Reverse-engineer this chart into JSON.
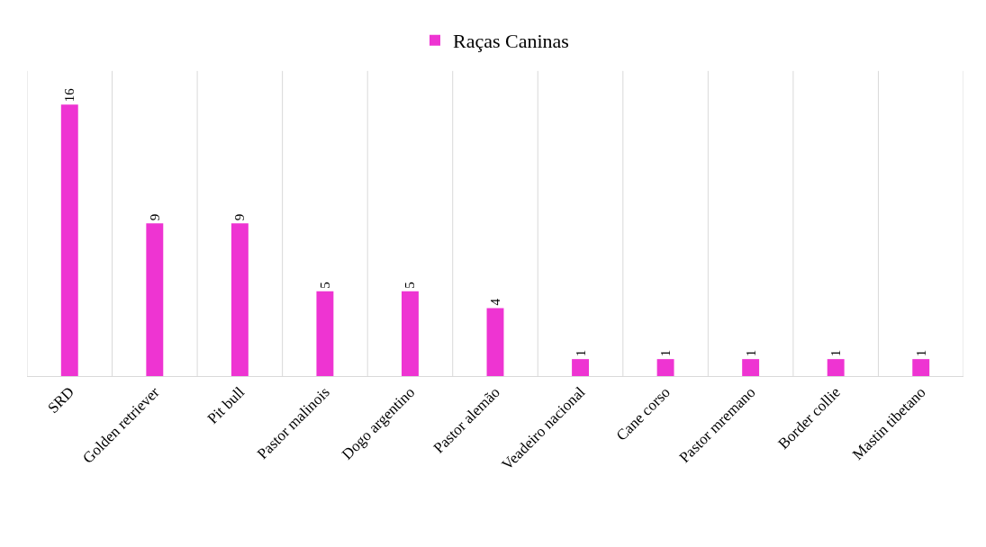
{
  "chart_data": {
    "type": "bar",
    "categories": [
      "SRD",
      "Golden retriever",
      "Pit bull",
      "Pastor malinois",
      "Dogo argentino",
      "Pastor alemão",
      "Veadeiro nacional",
      "Cane corso",
      "Pastor mremano",
      "Border collie",
      "Mastin tibetano"
    ],
    "series": [
      {
        "name": "Raças Caninas",
        "color": "#ee34d2",
        "values": [
          16,
          9,
          9,
          5,
          5,
          4,
          1,
          1,
          1,
          1,
          1
        ]
      }
    ],
    "data_labels": true,
    "grid": "x",
    "legend": "top"
  }
}
